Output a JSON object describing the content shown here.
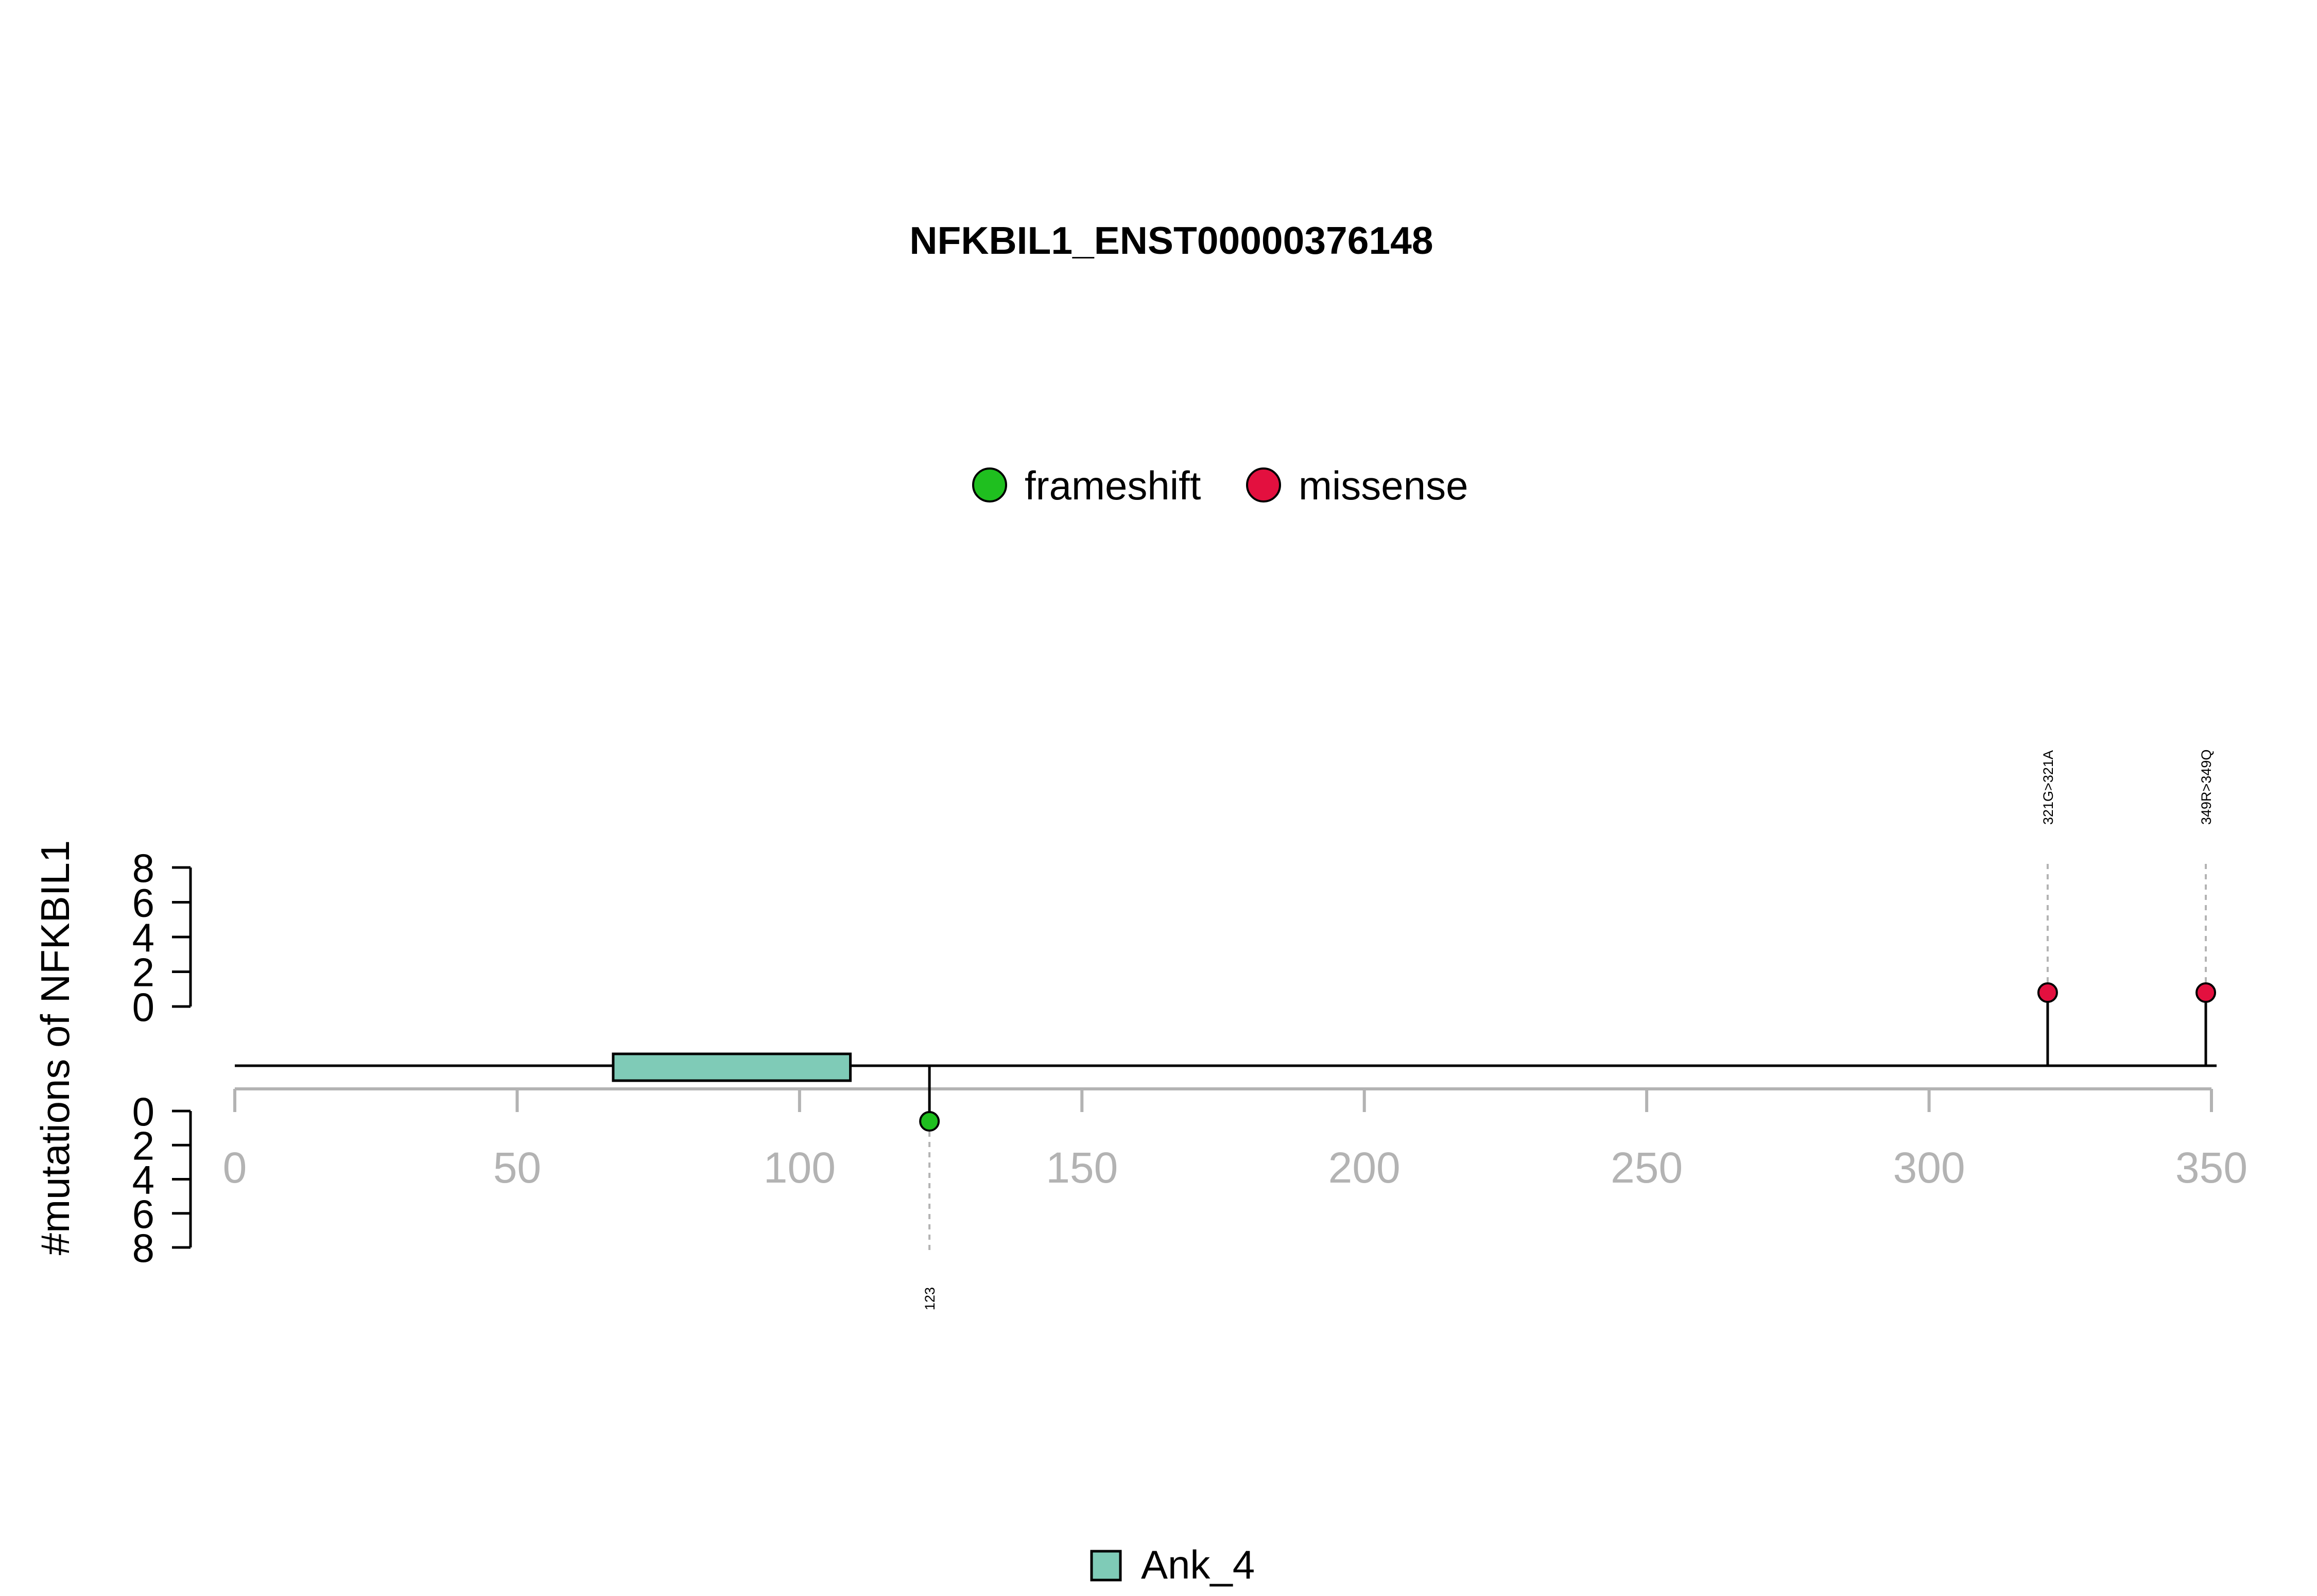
{
  "chart_data": {
    "type": "lollipop",
    "title": "NFKBIL1_ENST00000376148",
    "ylabel": "#mutations of NFKBIL1",
    "xlim": [
      0,
      350
    ],
    "x_ticks": [
      0,
      50,
      100,
      150,
      200,
      250,
      300,
      350
    ],
    "y_ticks": [
      0,
      2,
      4,
      6,
      8
    ],
    "legend": [
      {
        "label": "frameshift",
        "color": "#1FBF1F"
      },
      {
        "label": "missense",
        "color": "#E3103F"
      }
    ],
    "domains": [
      {
        "name": "Ank_4",
        "start": 67,
        "end": 109,
        "color": "#7FCBB7"
      }
    ],
    "mutations": [
      {
        "position": 123,
        "label": "123",
        "type": "frameshift",
        "count": 1,
        "side": "below",
        "color": "#1FBF1F"
      },
      {
        "position": 321,
        "label": "321G>321A",
        "type": "missense",
        "count": 1,
        "side": "above",
        "color": "#E3103F"
      },
      {
        "position": 349,
        "label": "349R>349Q",
        "type": "missense",
        "count": 1,
        "side": "above",
        "color": "#E3103F"
      }
    ]
  }
}
